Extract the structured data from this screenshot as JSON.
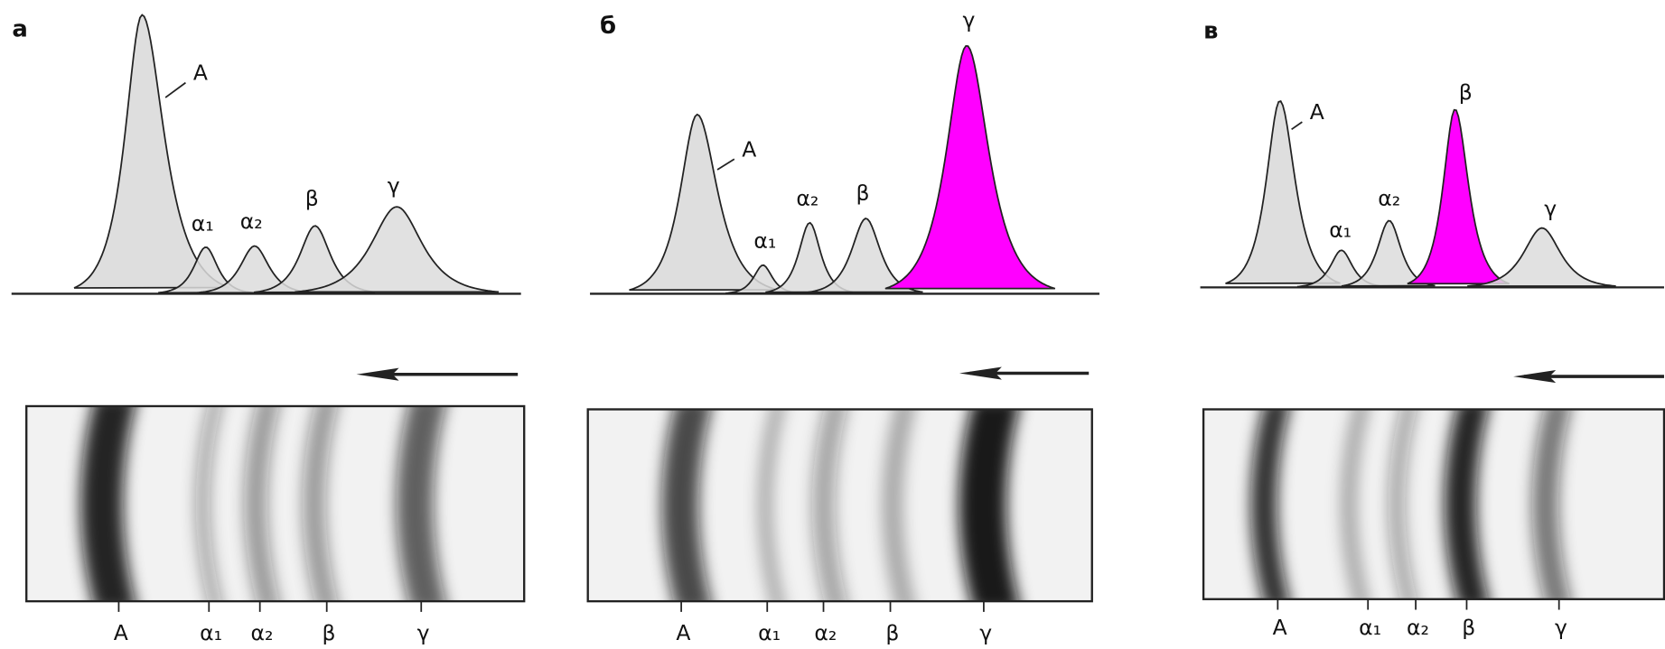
{
  "panels": [
    {
      "letter": "а",
      "peak_labels": [
        "A",
        "α₁",
        "α₂",
        "β",
        "γ"
      ],
      "band_labels": [
        "A",
        "α₁",
        "α₂",
        "β",
        "γ"
      ]
    },
    {
      "letter": "б",
      "peak_labels": [
        "A",
        "α₁",
        "α₂",
        "β",
        "γ"
      ],
      "band_labels": [
        "A",
        "α₁",
        "α₂",
        "β",
        "γ"
      ]
    },
    {
      "letter": "в",
      "peak_labels": [
        "A",
        "α₁",
        "α₂",
        "β",
        "γ"
      ],
      "band_labels": [
        "A",
        "α₁",
        "α₂",
        "β",
        "γ"
      ]
    }
  ]
}
